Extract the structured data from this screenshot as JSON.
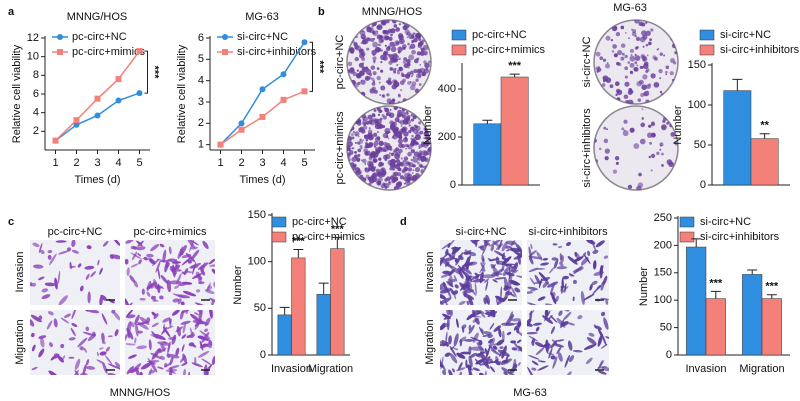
{
  "panel_labels": [
    "a",
    "b",
    "c",
    "d"
  ],
  "photo_groups": [
    {
      "title": "MNNG/HOS",
      "row_labels": [
        "pc-circ+NC",
        "pc-circ+mimics"
      ]
    },
    {
      "title": "MG-63",
      "row_labels": [
        "si-circ+NC",
        "si-circ+inhibitors"
      ]
    },
    {
      "caption": "MNNG/HOS",
      "column_labels": [
        "pc-circ+NC",
        "pc-circ+mimics"
      ],
      "row_labels": [
        "Invasion",
        "Migration"
      ]
    },
    {
      "caption": "MG-63",
      "column_labels": [
        "si-circ+NC",
        "si-circ+inhibitors"
      ],
      "row_labels": [
        "Invasion",
        "Migration"
      ]
    }
  ],
  "chart_data": [
    {
      "type": "line",
      "title": "MNNG/HOS",
      "xlabel": "Times (d)",
      "ylabel": "Relative cell viability",
      "x": [
        1,
        2,
        3,
        4,
        5
      ],
      "xlim": [
        0.5,
        5.5
      ],
      "xticks": [
        1,
        2,
        3,
        4,
        5
      ],
      "ylim": [
        0,
        12
      ],
      "yticks": [
        2,
        4,
        6,
        8,
        10,
        12
      ],
      "series": [
        {
          "name": "pc-circ+NC",
          "color": "#2f8ee0",
          "marker": "circle",
          "values": [
            1,
            2.7,
            3.7,
            5.3,
            6.1
          ]
        },
        {
          "name": "pc-circ+mimics",
          "color": "#f4807a",
          "marker": "square",
          "values": [
            1,
            3.2,
            5.5,
            7.6,
            10.6
          ]
        }
      ],
      "annotation": "***"
    },
    {
      "type": "line",
      "title": "MG-63",
      "xlabel": "Times (d)",
      "ylabel": "Relative cell viability",
      "x": [
        1,
        2,
        3,
        4,
        5
      ],
      "xlim": [
        0.5,
        5.5
      ],
      "xticks": [
        1,
        2,
        3,
        4,
        5
      ],
      "ylim": [
        0.75,
        6
      ],
      "yticks": [
        1,
        2,
        3,
        4,
        5,
        6
      ],
      "series": [
        {
          "name": "si-circ+NC",
          "color": "#2f8ee0",
          "marker": "circle",
          "values": [
            1,
            2,
            3.6,
            4.3,
            5.8
          ]
        },
        {
          "name": "si-circ+inhibitors",
          "color": "#f4807a",
          "marker": "square",
          "values": [
            1,
            1.7,
            2.3,
            3.1,
            3.5
          ]
        }
      ],
      "annotation": "***"
    },
    {
      "type": "bar",
      "ylabel": "Number",
      "categories": [
        null
      ],
      "ylim": [
        0,
        500
      ],
      "yticks": [
        0,
        200,
        400
      ],
      "series": [
        {
          "name": "pc-circ+NC",
          "color": "#2f8ee0",
          "values": [
            255
          ],
          "errors": [
            15
          ]
        },
        {
          "name": "pc-circ+mimics",
          "color": "#f4807a",
          "values": [
            450
          ],
          "errors": [
            12
          ]
        }
      ],
      "annotations": [
        "***"
      ]
    },
    {
      "type": "bar",
      "ylabel": "Number",
      "categories": [
        null
      ],
      "ylim": [
        0,
        150
      ],
      "yticks": [
        0,
        50,
        100,
        150
      ],
      "series": [
        {
          "name": "si-circ+NC",
          "color": "#2f8ee0",
          "values": [
            118
          ],
          "errors": [
            14
          ]
        },
        {
          "name": "si-circ+inhibitors",
          "color": "#f4807a",
          "values": [
            58
          ],
          "errors": [
            6
          ]
        }
      ],
      "annotations": [
        "**"
      ]
    },
    {
      "type": "bar",
      "ylabel": "Number",
      "categories": [
        "Invasion",
        "Migration"
      ],
      "ylim": [
        0,
        150
      ],
      "yticks": [
        0,
        50,
        100,
        150
      ],
      "series": [
        {
          "name": "pc-circ+NC",
          "color": "#2f8ee0",
          "values": [
            43,
            65
          ],
          "errors": [
            8,
            12
          ]
        },
        {
          "name": "pc-circ+mimics",
          "color": "#f4807a",
          "values": [
            104,
            114
          ],
          "errors": [
            9,
            12
          ]
        }
      ],
      "annotations": [
        "***",
        "***"
      ]
    },
    {
      "type": "bar",
      "ylabel": "Number",
      "categories": [
        "Invasion",
        "Migration"
      ],
      "ylim": [
        0,
        250
      ],
      "yticks": [
        0,
        50,
        100,
        150,
        200,
        250
      ],
      "series": [
        {
          "name": "si-circ+NC",
          "color": "#2f8ee0",
          "values": [
            197,
            147
          ],
          "errors": [
            15,
            8
          ]
        },
        {
          "name": "si-circ+inhibitors",
          "color": "#f4807a",
          "values": [
            103,
            103
          ],
          "errors": [
            13,
            7
          ]
        }
      ],
      "annotations": [
        "***",
        "***"
      ]
    }
  ]
}
